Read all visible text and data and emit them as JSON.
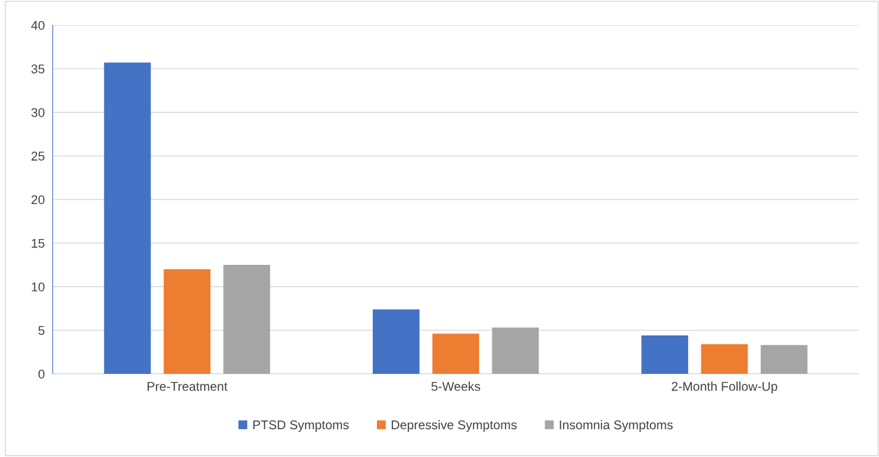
{
  "chart_data": {
    "type": "bar",
    "categories": [
      "Pre-Treatment",
      "5-Weeks",
      "2-Month Follow-Up"
    ],
    "series": [
      {
        "name": "PTSD Symptoms",
        "color": "#4472c4",
        "values": [
          35.7,
          7.4,
          4.4
        ]
      },
      {
        "name": "Depressive Symptoms",
        "color": "#ed7d31",
        "values": [
          12.0,
          4.6,
          3.4
        ]
      },
      {
        "name": "Insomnia Symptoms",
        "color": "#a5a5a5",
        "values": [
          12.5,
          5.3,
          3.3
        ]
      }
    ],
    "ylim": [
      0,
      40
    ],
    "yticks": [
      0,
      5,
      10,
      15,
      20,
      25,
      30,
      35,
      40
    ],
    "grid": "y",
    "legend": "bottom"
  }
}
